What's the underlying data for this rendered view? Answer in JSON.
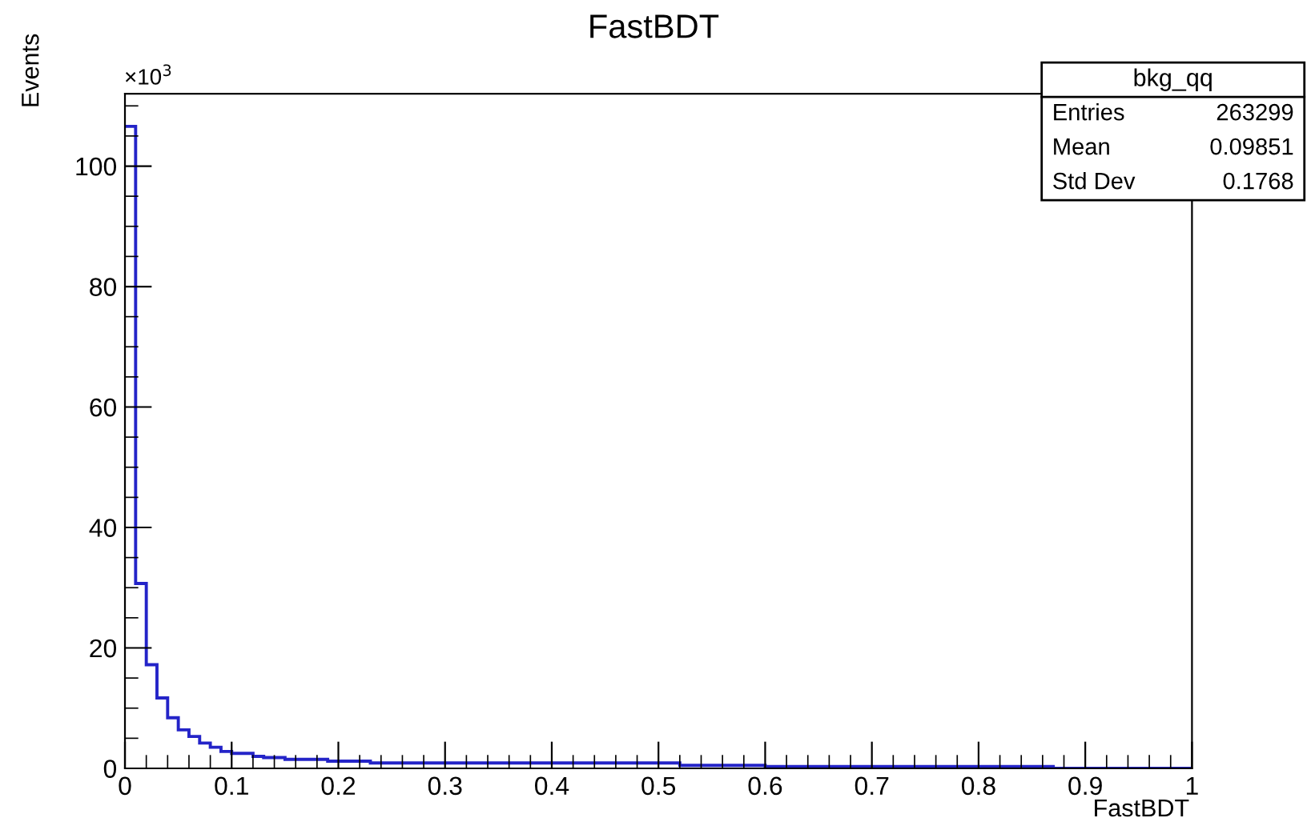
{
  "chart_data": {
    "type": "histogram",
    "title": "FastBDT",
    "xlabel": "FastBDT",
    "ylabel": "Events",
    "bins": [
      0,
      0.01,
      0.02,
      0.03,
      0.04,
      0.05,
      0.06,
      0.07,
      0.08,
      0.09,
      0.1,
      0.11,
      0.12,
      0.13,
      0.14,
      0.15,
      0.16,
      0.17,
      0.18,
      0.19,
      0.2,
      0.21,
      0.22,
      0.23,
      0.24,
      0.25,
      0.26,
      0.27,
      0.28,
      0.29,
      0.3,
      0.31,
      0.32,
      0.33,
      0.34,
      0.35,
      0.36,
      0.37,
      0.38,
      0.39,
      0.4,
      0.41,
      0.42,
      0.43,
      0.44,
      0.45,
      0.46,
      0.47,
      0.48,
      0.49,
      0.5,
      0.51,
      0.52,
      0.53,
      0.54,
      0.55,
      0.56,
      0.57,
      0.58,
      0.59,
      0.6,
      0.61,
      0.62,
      0.63,
      0.64,
      0.65,
      0.66,
      0.67,
      0.68,
      0.69,
      0.7,
      0.71,
      0.72,
      0.73,
      0.74,
      0.75,
      0.76,
      0.77,
      0.78,
      0.79,
      0.8,
      0.81,
      0.82,
      0.83,
      0.84,
      0.85,
      0.86,
      0.87,
      0.88,
      0.89,
      0.9,
      0.91,
      0.92,
      0.93,
      0.94,
      0.95,
      0.96,
      0.97,
      0.98,
      0.99,
      1
    ],
    "values": [
      106.6,
      30.7,
      17.2,
      11.7,
      8.4,
      6.4,
      5.3,
      4.2,
      3.5,
      2.8,
      2.5,
      2.5,
      2.0,
      1.8,
      1.8,
      1.5,
      1.5,
      1.5,
      1.5,
      1.2,
      1.2,
      1.2,
      1.2,
      0.9,
      0.9,
      0.9,
      0.9,
      0.9,
      0.9,
      0.9,
      0.9,
      0.9,
      0.9,
      0.9,
      0.9,
      0.9,
      0.9,
      0.9,
      0.9,
      0.9,
      0.9,
      0.9,
      0.9,
      0.9,
      0.9,
      0.9,
      0.9,
      0.9,
      0.9,
      0.9,
      0.9,
      0.9,
      0.5,
      0.5,
      0.5,
      0.5,
      0.5,
      0.5,
      0.5,
      0.5,
      0.3,
      0.3,
      0.3,
      0.3,
      0.3,
      0.3,
      0.3,
      0.3,
      0.3,
      0.3,
      0.3,
      0.3,
      0.3,
      0.3,
      0.3,
      0.3,
      0.3,
      0.3,
      0.3,
      0.3,
      0.3,
      0.3,
      0.3,
      0.3,
      0.3,
      0.3,
      0.3,
      0,
      0,
      0,
      0,
      0,
      0,
      0,
      0,
      0,
      0,
      0,
      0,
      0
    ],
    "color": "#2424c8",
    "xlim": [
      0,
      1
    ],
    "xticks": [
      0,
      0.1,
      0.2,
      0.3,
      0.4,
      0.5,
      0.6,
      0.7,
      0.8,
      0.9,
      1
    ],
    "ylim": [
      0,
      112
    ],
    "yticks": [
      0,
      20,
      40,
      60,
      80,
      100
    ],
    "grid": false,
    "annotations": [
      "×10$^{3}$",
      "bkg_qq",
      "Entries",
      "263299",
      "Mean",
      "0.09851",
      "Std Dev",
      "0.1768"
    ]
  }
}
